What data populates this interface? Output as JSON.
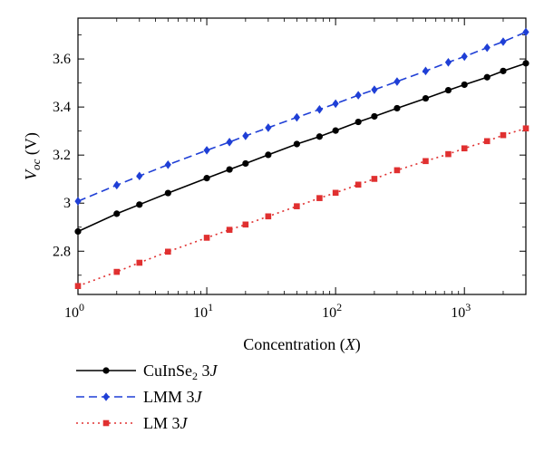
{
  "chart_data": {
    "type": "line",
    "x_scale": "log",
    "xlim": [
      1,
      3000
    ],
    "ylim": [
      2.62,
      3.77
    ],
    "xlabel": {
      "prefix": "Concentration (",
      "var": "X",
      "suffix": ")"
    },
    "ylabel": {
      "main": "V",
      "sub": "oc",
      "unit": " (V)"
    },
    "x_ticks": [
      {
        "base": "10",
        "exp": "0"
      },
      {
        "base": "10",
        "exp": "1"
      },
      {
        "base": "10",
        "exp": "2"
      },
      {
        "base": "10",
        "exp": "3"
      }
    ],
    "y_ticks": [
      "2.8",
      "3",
      "3.2",
      "3.4",
      "3.6"
    ],
    "y_tick_values": [
      2.8,
      3.0,
      3.2,
      3.4,
      3.6
    ],
    "x": [
      1,
      2,
      3,
      5,
      10,
      15,
      20,
      30,
      50,
      75,
      100,
      150,
      200,
      300,
      500,
      750,
      1000,
      1500,
      2000,
      3000
    ],
    "series": [
      {
        "name": "CuInSe2 3J",
        "label_main": "CuInSe",
        "label_sub": "2",
        "label_mid": " 3",
        "label_italic": "J",
        "color": "#000000",
        "dash": "solid",
        "marker": "circle",
        "values": [
          2.882,
          2.956,
          2.994,
          3.042,
          3.104,
          3.14,
          3.165,
          3.201,
          3.246,
          3.277,
          3.302,
          3.338,
          3.361,
          3.395,
          3.436,
          3.47,
          3.493,
          3.524,
          3.55,
          3.582
        ]
      },
      {
        "name": "LMM 3J",
        "label_main": "LMM",
        "label_sub": "",
        "label_mid": " 3",
        "label_italic": "J",
        "color": "#1f3fd6",
        "dash": "dashed",
        "marker": "diamond",
        "values": [
          3.008,
          3.075,
          3.113,
          3.16,
          3.22,
          3.254,
          3.28,
          3.314,
          3.357,
          3.39,
          3.414,
          3.449,
          3.472,
          3.506,
          3.55,
          3.586,
          3.61,
          3.647,
          3.672,
          3.712
        ]
      },
      {
        "name": "LM 3J",
        "label_main": "LM",
        "label_sub": "",
        "label_mid": " 3",
        "label_italic": "J",
        "color": "#e03030",
        "dash": "dotted",
        "marker": "square",
        "values": [
          2.655,
          2.714,
          2.752,
          2.798,
          2.856,
          2.889,
          2.911,
          2.945,
          2.987,
          3.021,
          3.043,
          3.077,
          3.101,
          3.137,
          3.175,
          3.204,
          3.228,
          3.258,
          3.283,
          3.311
        ]
      }
    ],
    "legend_position": "below plot, left"
  }
}
